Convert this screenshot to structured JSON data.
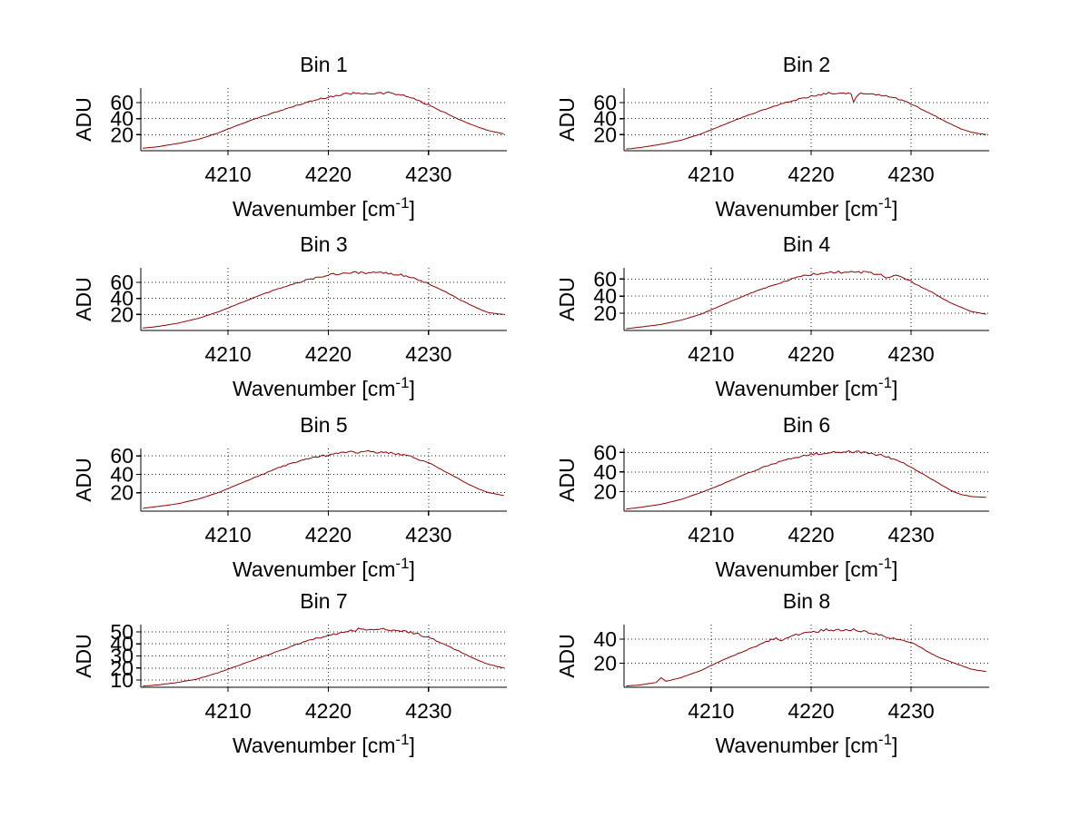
{
  "figure": {
    "background": "#ffffff",
    "line_color": "#8B0000",
    "grid": "dotted",
    "ylabel": "ADU",
    "xlabel_prefix": "Wavenumber [cm",
    "xlabel_sup": "-1",
    "xlabel_suffix": "]"
  },
  "chart_data": [
    {
      "type": "line",
      "title": "Bin 1",
      "xlabel": "Wavenumber [cm^-1]",
      "ylabel": "ADU",
      "xlim": [
        4201.3,
        4237.8
      ],
      "ylim": [
        0,
        78
      ],
      "xticks": [
        4210,
        4220,
        4230
      ],
      "yticks": [
        20,
        40,
        60
      ],
      "noise_amp": 1.3,
      "x": [
        4201.5,
        4203,
        4205,
        4207,
        4209,
        4211,
        4213,
        4215,
        4217,
        4219,
        4220,
        4221,
        4222,
        4223,
        4224,
        4225,
        4226,
        4227,
        4228,
        4229,
        4230,
        4231,
        4232,
        4233,
        4234,
        4235,
        4236,
        4237.5
      ],
      "y": [
        3,
        5,
        9,
        14,
        22,
        32,
        41,
        49,
        57,
        64,
        67,
        69,
        71,
        72,
        72,
        71,
        72,
        70,
        67,
        62,
        57,
        51,
        45,
        39,
        34,
        29,
        25,
        21
      ]
    },
    {
      "type": "line",
      "title": "Bin 2",
      "xlabel": "Wavenumber [cm^-1]",
      "ylabel": "ADU",
      "xlim": [
        4201.3,
        4237.8
      ],
      "ylim": [
        0,
        78
      ],
      "xticks": [
        4210,
        4220,
        4230
      ],
      "yticks": [
        20,
        40,
        60
      ],
      "noise_amp": 1.4,
      "x": [
        4201.5,
        4203,
        4205,
        4207,
        4209,
        4211,
        4213,
        4215,
        4217,
        4219,
        4220,
        4221,
        4222,
        4223,
        4224,
        4224.3,
        4224.6,
        4225,
        4226,
        4227,
        4228,
        4229,
        4230,
        4231,
        4232,
        4233,
        4234,
        4235,
        4236,
        4237.5
      ],
      "y": [
        2,
        4,
        8,
        13,
        21,
        31,
        41,
        50,
        58,
        65,
        68,
        70,
        72,
        71,
        72,
        59,
        71,
        72,
        71,
        70,
        67,
        63,
        58,
        52,
        46,
        39,
        33,
        27,
        23,
        20
      ]
    },
    {
      "type": "line",
      "title": "Bin 3",
      "xlabel": "Wavenumber [cm^-1]",
      "ylabel": "ADU",
      "xlim": [
        4201.3,
        4237.8
      ],
      "ylim": [
        0,
        78
      ],
      "xticks": [
        4210,
        4220,
        4230
      ],
      "yticks": [
        20,
        40,
        60
      ],
      "noise_amp": 1.4,
      "x": [
        4201.5,
        4203,
        4205,
        4207,
        4209,
        4211,
        4213,
        4215,
        4217,
        4219,
        4220,
        4221,
        4222,
        4223,
        4224,
        4225,
        4226,
        4227,
        4228,
        4229,
        4230,
        4231,
        4232,
        4233,
        4234,
        4235,
        4236,
        4237.5
      ],
      "y": [
        3,
        5,
        9,
        15,
        23,
        33,
        43,
        52,
        60,
        66,
        69,
        71,
        72,
        72,
        71,
        72,
        71,
        70,
        67,
        63,
        58,
        52,
        46,
        39,
        33,
        27,
        22,
        20
      ]
    },
    {
      "type": "line",
      "title": "Bin 4",
      "xlabel": "Wavenumber [cm^-1]",
      "ylabel": "ADU",
      "xlim": [
        4201.3,
        4237.8
      ],
      "ylim": [
        0,
        73
      ],
      "xticks": [
        4210,
        4220,
        4230
      ],
      "yticks": [
        20,
        40,
        60
      ],
      "noise_amp": 1.3,
      "x": [
        4201.5,
        4203,
        4205,
        4207,
        4209,
        4211,
        4213,
        4215,
        4217,
        4219,
        4221,
        4223,
        4224,
        4225,
        4226,
        4227,
        4227.5,
        4228.5,
        4229,
        4230,
        4231,
        4232,
        4233,
        4234,
        4235,
        4236,
        4237.5
      ],
      "y": [
        2,
        4,
        7,
        12,
        19,
        29,
        39,
        48,
        56,
        63,
        67,
        68,
        69,
        68,
        67,
        65,
        62,
        65,
        62,
        57,
        51,
        45,
        38,
        32,
        27,
        22,
        19
      ]
    },
    {
      "type": "line",
      "title": "Bin 5",
      "xlabel": "Wavenumber [cm^-1]",
      "ylabel": "ADU",
      "xlim": [
        4201.3,
        4237.8
      ],
      "ylim": [
        0,
        68
      ],
      "xticks": [
        4210,
        4220,
        4230
      ],
      "yticks": [
        20,
        40,
        60
      ],
      "noise_amp": 1.2,
      "x": [
        4201.5,
        4203,
        4205,
        4207,
        4209,
        4211,
        4213,
        4215,
        4217,
        4219,
        4220,
        4221,
        4222,
        4223,
        4224,
        4225,
        4226,
        4227,
        4228,
        4229,
        4230,
        4231,
        4232,
        4233,
        4234,
        4235,
        4236,
        4237.5
      ],
      "y": [
        3,
        5,
        8,
        13,
        20,
        29,
        38,
        47,
        54,
        59,
        61,
        63,
        64,
        64,
        65,
        64,
        63,
        62,
        60,
        56,
        52,
        47,
        41,
        35,
        29,
        24,
        20,
        17
      ]
    },
    {
      "type": "line",
      "title": "Bin 6",
      "xlabel": "Wavenumber [cm^-1]",
      "ylabel": "ADU",
      "xlim": [
        4201.3,
        4237.8
      ],
      "ylim": [
        0,
        64
      ],
      "xticks": [
        4210,
        4220,
        4230
      ],
      "yticks": [
        20,
        40,
        60
      ],
      "noise_amp": 1.2,
      "x": [
        4201.5,
        4203,
        4205,
        4207,
        4209,
        4211,
        4213,
        4215,
        4217,
        4219,
        4220,
        4221,
        4222,
        4223,
        4224,
        4225,
        4226,
        4227,
        4228,
        4229,
        4230,
        4231,
        4232,
        4233,
        4234,
        4235,
        4236,
        4237.5
      ],
      "y": [
        2,
        4,
        7,
        12,
        19,
        27,
        36,
        44,
        51,
        56,
        58,
        59,
        60,
        60,
        61,
        60,
        59,
        57,
        54,
        50,
        45,
        39,
        33,
        27,
        21,
        17,
        15,
        14
      ]
    },
    {
      "type": "line",
      "title": "Bin 7",
      "xlabel": "Wavenumber [cm^-1]",
      "ylabel": "ADU",
      "xlim": [
        4201.3,
        4237.8
      ],
      "ylim": [
        4,
        56
      ],
      "xticks": [
        4210,
        4220,
        4230
      ],
      "yticks": [
        10,
        20,
        30,
        40,
        50
      ],
      "noise_amp": 1.0,
      "x": [
        4201.5,
        4203,
        4205,
        4207,
        4209,
        4211,
        4213,
        4215,
        4217,
        4219,
        4220,
        4221,
        4222,
        4223,
        4224,
        4225,
        4226,
        4227,
        4228,
        4229,
        4230,
        4231,
        4232,
        4233,
        4234,
        4235,
        4236,
        4237.5
      ],
      "y": [
        5,
        6,
        8,
        11,
        16,
        22,
        28,
        34,
        40,
        45,
        47,
        49,
        51,
        52,
        52,
        53,
        52,
        51,
        50,
        48,
        45,
        42,
        38,
        34,
        30,
        26,
        23,
        20
      ]
    },
    {
      "type": "line",
      "title": "Bin 8",
      "xlabel": "Wavenumber [cm^-1]",
      "ylabel": "ADU",
      "xlim": [
        4201.3,
        4237.8
      ],
      "ylim": [
        0,
        52
      ],
      "xticks": [
        4210,
        4220,
        4230
      ],
      "yticks": [
        20,
        40
      ],
      "noise_amp": 1.0,
      "x": [
        4201.5,
        4203,
        4204.5,
        4205,
        4205.5,
        4207,
        4209,
        4211,
        4213,
        4215,
        4216.5,
        4217,
        4218,
        4219,
        4220,
        4221,
        4222,
        4223,
        4224,
        4225,
        4226,
        4227,
        4228,
        4229,
        4230,
        4231,
        4232,
        4233,
        4234,
        4235,
        4236,
        4237.5
      ],
      "y": [
        1,
        2,
        4,
        8,
        5,
        8,
        14,
        22,
        29,
        36,
        41,
        39,
        43,
        44,
        46,
        47,
        48,
        47,
        48,
        47,
        45,
        43,
        41,
        39,
        37,
        33,
        28,
        24,
        21,
        18,
        15,
        13
      ]
    }
  ]
}
